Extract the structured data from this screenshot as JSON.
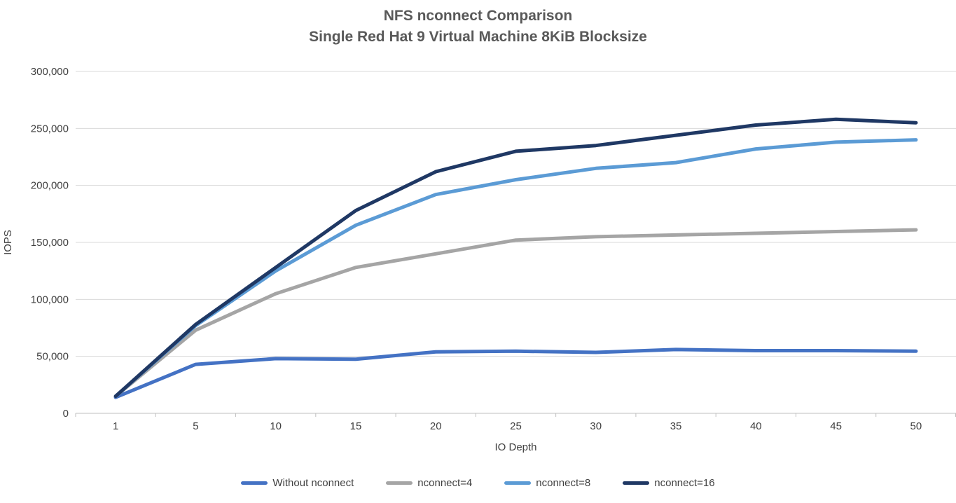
{
  "chart_data": {
    "type": "line",
    "title": "NFS nconnect Comparison",
    "subtitle": "Single Red Hat 9 Virtual Machine 8KiB Blocksize",
    "xlabel": "IO Depth",
    "ylabel": "IOPS",
    "categories": [
      1,
      5,
      10,
      15,
      20,
      25,
      30,
      35,
      40,
      45,
      50
    ],
    "y_tick_values": [
      0,
      50000,
      100000,
      150000,
      200000,
      250000,
      300000
    ],
    "y_tick_labels": [
      "0",
      "50,000",
      "100,000",
      "150,000",
      "200,000",
      "250,000",
      "300,000"
    ],
    "ylim": [
      0,
      300000
    ],
    "grid": true,
    "legend_position": "bottom",
    "series": [
      {
        "name": "Without nconnect",
        "color": "#4472C4",
        "values": [
          14000,
          43000,
          48000,
          47500,
          54000,
          54500,
          53500,
          56000,
          55000,
          55000,
          54500
        ]
      },
      {
        "name": "nconnect=4",
        "color": "#A5A5A5",
        "values": [
          15000,
          73000,
          105000,
          128000,
          140000,
          152000,
          155000,
          156500,
          158000,
          159500,
          161000
        ]
      },
      {
        "name": "nconnect=8",
        "color": "#5B9BD5",
        "values": [
          15000,
          77000,
          125000,
          165000,
          192000,
          205000,
          215000,
          220000,
          232000,
          238000,
          240000
        ]
      },
      {
        "name": "nconnect=16",
        "color": "#1F3864",
        "values": [
          15000,
          78000,
          128000,
          178000,
          212000,
          230000,
          235000,
          244000,
          253000,
          258000,
          255000
        ]
      }
    ]
  },
  "colors": {
    "title_text": "#595959",
    "tick_text": "#404040",
    "gridline": "#D9D9D9",
    "axis_line": "#BFBFBF",
    "background": "#FFFFFF"
  }
}
